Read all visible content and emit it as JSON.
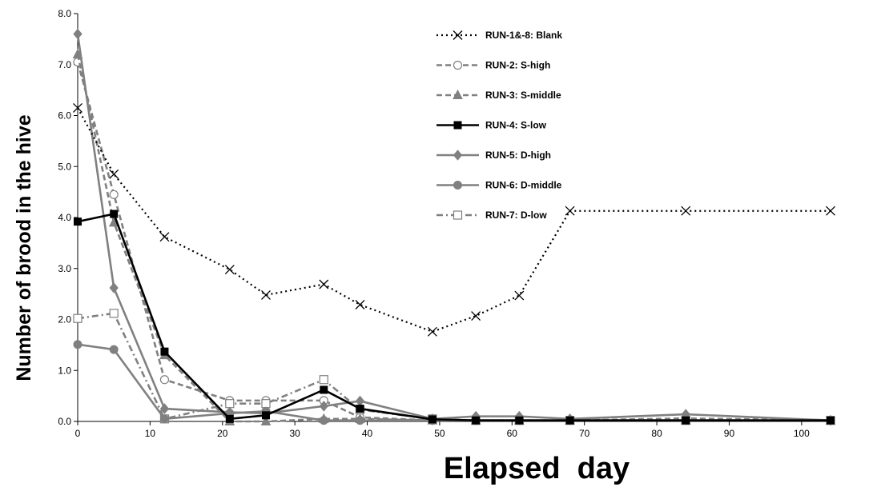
{
  "chart_data": {
    "type": "line",
    "title": "",
    "xlabel": "Elapsed  day",
    "ylabel": "Number of brood  in the hive",
    "xlim": [
      0,
      104
    ],
    "ylim": [
      0,
      8
    ],
    "xticks": [
      0,
      10,
      20,
      30,
      40,
      50,
      60,
      70,
      80,
      90,
      100
    ],
    "yticks": [
      "0.0",
      "1.0",
      "2.0",
      "3.0",
      "4.0",
      "5.0",
      "6.0",
      "7.0",
      "8.0"
    ],
    "grid": false,
    "legend_position": "top-right",
    "series": [
      {
        "name": "RUN-1&-8: Blank",
        "color": "#000000",
        "dash": "dotted",
        "marker": "x",
        "x": [
          0,
          5,
          12,
          21,
          26,
          34,
          39,
          49,
          55,
          61,
          68,
          84,
          104
        ],
        "y": [
          6.15,
          4.85,
          3.62,
          2.98,
          2.48,
          2.69,
          2.29,
          1.76,
          2.07,
          2.47,
          4.13,
          4.13,
          4.13
        ]
      },
      {
        "name": "RUN-2: S-high",
        "color": "#808080",
        "dash": "dashed",
        "marker": "circle-open",
        "x": [
          0,
          5,
          12,
          21,
          26,
          34,
          39,
          49,
          55,
          61,
          68,
          84,
          104
        ],
        "y": [
          7.05,
          4.45,
          0.82,
          0.41,
          0.41,
          0.41,
          0.08,
          0.02,
          0.02,
          0.02,
          0.02,
          0.06,
          0.02
        ]
      },
      {
        "name": "RUN-3: S-middle",
        "color": "#808080",
        "dash": "dashed",
        "marker": "triangle",
        "x": [
          0,
          5,
          12,
          21,
          26,
          34,
          39,
          49,
          55,
          61,
          68,
          84,
          104
        ],
        "y": [
          7.2,
          3.9,
          1.3,
          0.0,
          0.0,
          0.05,
          0.05,
          0.02,
          0.02,
          0.02,
          0.02,
          0.02,
          0.02
        ]
      },
      {
        "name": "RUN-4: S-low",
        "color": "#000000",
        "dash": "solid",
        "marker": "square",
        "x": [
          0,
          5,
          12,
          21,
          26,
          34,
          39,
          49,
          55,
          61,
          68,
          84,
          104
        ],
        "y": [
          3.92,
          4.07,
          1.37,
          0.05,
          0.12,
          0.62,
          0.25,
          0.04,
          0.02,
          0.02,
          0.02,
          0.02,
          0.02
        ]
      },
      {
        "name": "RUN-5: D-high",
        "color": "#808080",
        "dash": "solid",
        "marker": "diamond",
        "x": [
          0,
          5,
          12,
          21,
          26,
          34,
          39,
          49,
          55,
          61,
          68,
          84,
          104
        ],
        "y": [
          7.6,
          2.62,
          0.25,
          0.18,
          0.16,
          0.3,
          0.4,
          0.05,
          0.1,
          0.1,
          0.05,
          0.14,
          0.02
        ]
      },
      {
        "name": "RUN-6: D-middle",
        "color": "#808080",
        "dash": "solid",
        "marker": "circle",
        "x": [
          0,
          5,
          12,
          21,
          26,
          34,
          39,
          49,
          55,
          61,
          68,
          84,
          104
        ],
        "y": [
          1.51,
          1.41,
          0.05,
          0.16,
          0.2,
          0.02,
          0.02,
          0.02,
          0.02,
          0.02,
          0.02,
          0.02,
          0.02
        ]
      },
      {
        "name": "RUN-7: D-low",
        "color": "#808080",
        "dash": "dashdot",
        "marker": "square-open",
        "x": [
          0,
          5,
          12,
          21,
          26,
          34,
          39,
          49,
          55,
          61,
          68,
          84,
          104
        ],
        "y": [
          2.02,
          2.12,
          0.05,
          0.35,
          0.35,
          0.82,
          0.23,
          0.05,
          0.02,
          0.02,
          0.02,
          0.02,
          0.02
        ]
      }
    ]
  }
}
